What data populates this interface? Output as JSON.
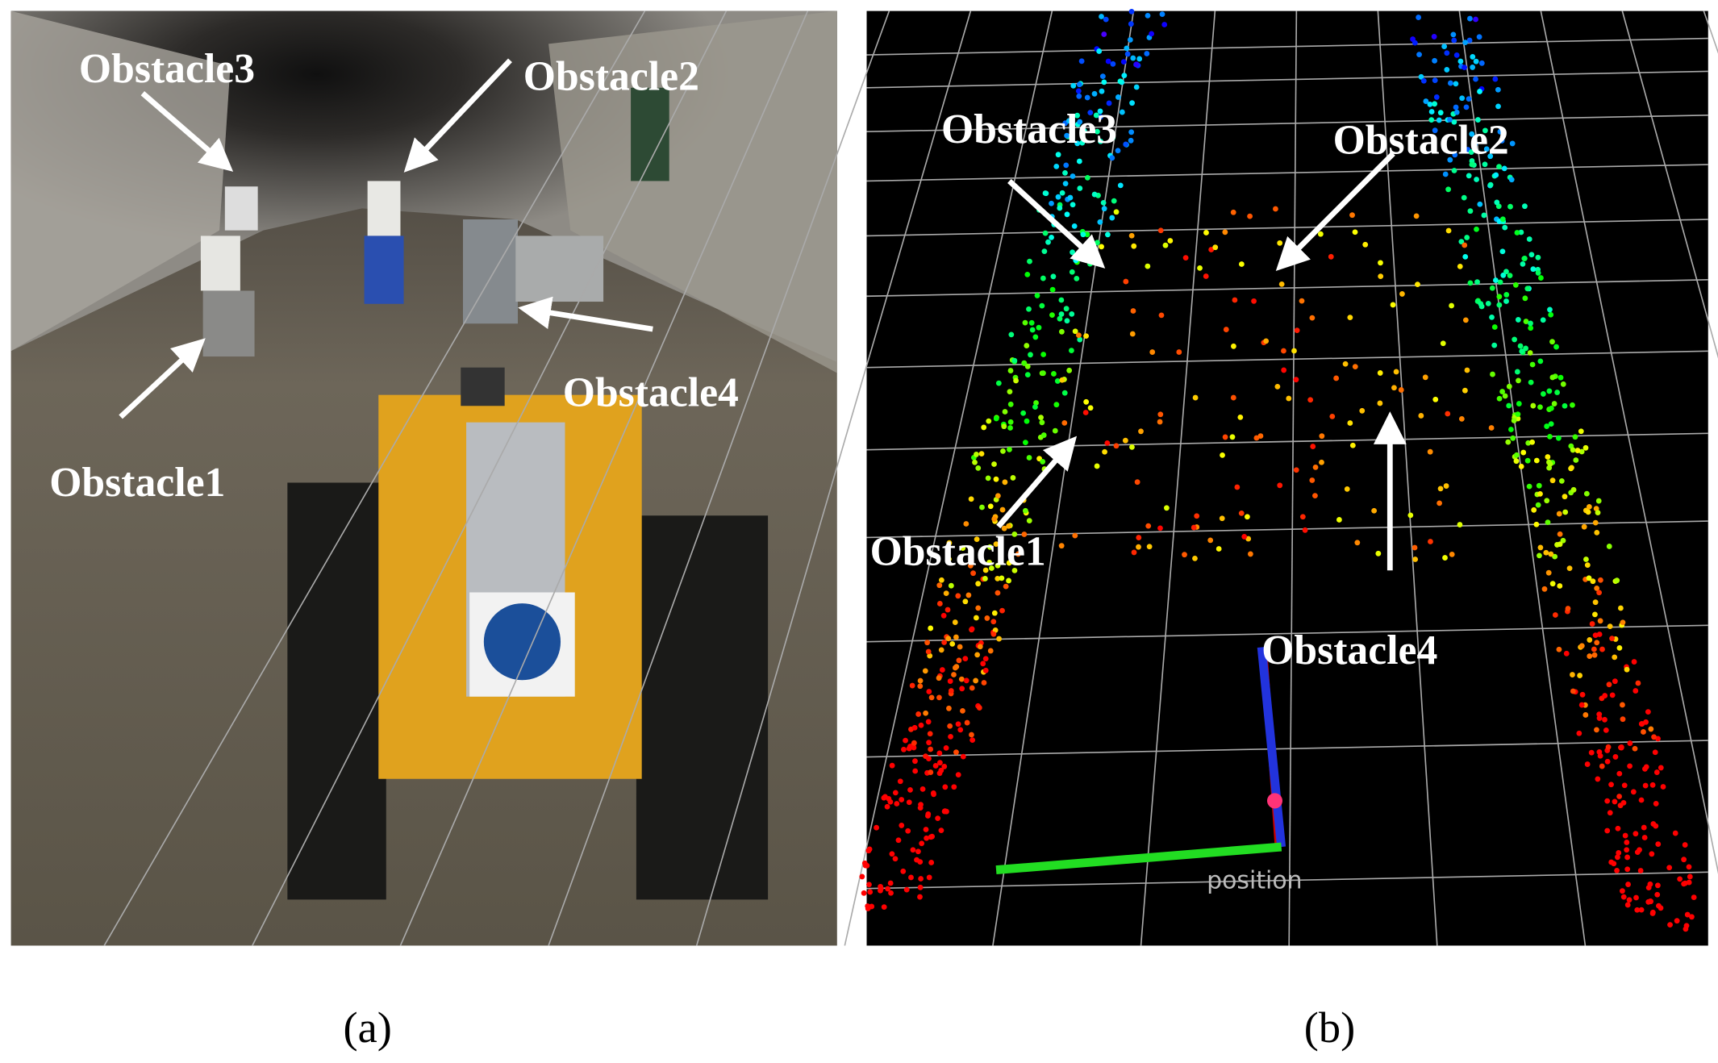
{
  "panels": [
    {
      "label": "(a)",
      "annotations": [
        "Obstacle3",
        "Obstacle2",
        "Obstacle4",
        "Obstacle1"
      ]
    },
    {
      "label": "(b)",
      "annotations": [
        "Obstacle3",
        "Obstacle2",
        "Obstacle1",
        "Obstacle4"
      ],
      "frame_label": "position"
    }
  ]
}
